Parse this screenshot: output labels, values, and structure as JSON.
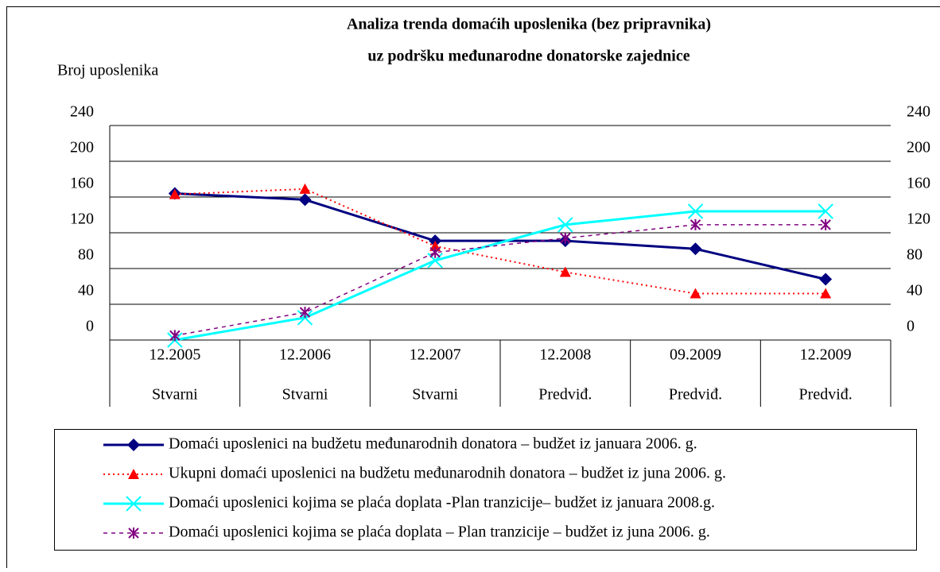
{
  "chart_data": {
    "type": "line",
    "title": "Analiza trenda domaćih uposlenika (bez pripravnika)",
    "subtitle": "uz podršku međunarodne donatorske zajednice",
    "y_label": "Broj uposlenika",
    "categories": [
      "12.2005",
      "12.2006",
      "12.2007",
      "12.2008",
      "09.2009",
      "12.2009"
    ],
    "periods": [
      "Stvarni",
      "Stvarni",
      "Stvarni",
      "Predviđ.",
      "Predviđ.",
      "Predviđ."
    ],
    "ylim": [
      0,
      240
    ],
    "yticks": [
      0,
      40,
      80,
      120,
      160,
      200,
      240
    ],
    "y2lim": [
      0,
      240
    ],
    "y2ticks": [
      0,
      40,
      80,
      120,
      160,
      200,
      240
    ],
    "grid": true,
    "series": [
      {
        "name": "Domaći uposlenici na budžetu međunarodnih donatora – budžet iz januara 2006. g.",
        "color": "#000080",
        "marker": "diamond",
        "dash": "solid",
        "values": [
          164,
          157,
          111,
          111,
          102,
          68
        ]
      },
      {
        "name": "Ukupni domaći uposlenici na budžetu međunarodnih donatora – budžet iz juna 2006. g.",
        "color": "#ff0000",
        "marker": "triangle",
        "dash": "dotted",
        "values": [
          163,
          169,
          105,
          76,
          52,
          52
        ]
      },
      {
        "name": "Domaći uposlenici kojima se plaća doplata -Plan tranzicije– budžet iz januara 2008.g.",
        "color": "#00ffff",
        "marker": "x",
        "dash": "solid",
        "values": [
          0,
          25,
          89,
          129,
          144,
          144
        ]
      },
      {
        "name": "Domaći uposlenici kojima se plaća doplata – Plan tranzicije – budžet iz juna 2006. g.",
        "color": "#800080",
        "marker": "star",
        "dash": "dashed",
        "values": [
          5,
          31,
          98,
          114,
          129,
          129
        ]
      }
    ]
  }
}
